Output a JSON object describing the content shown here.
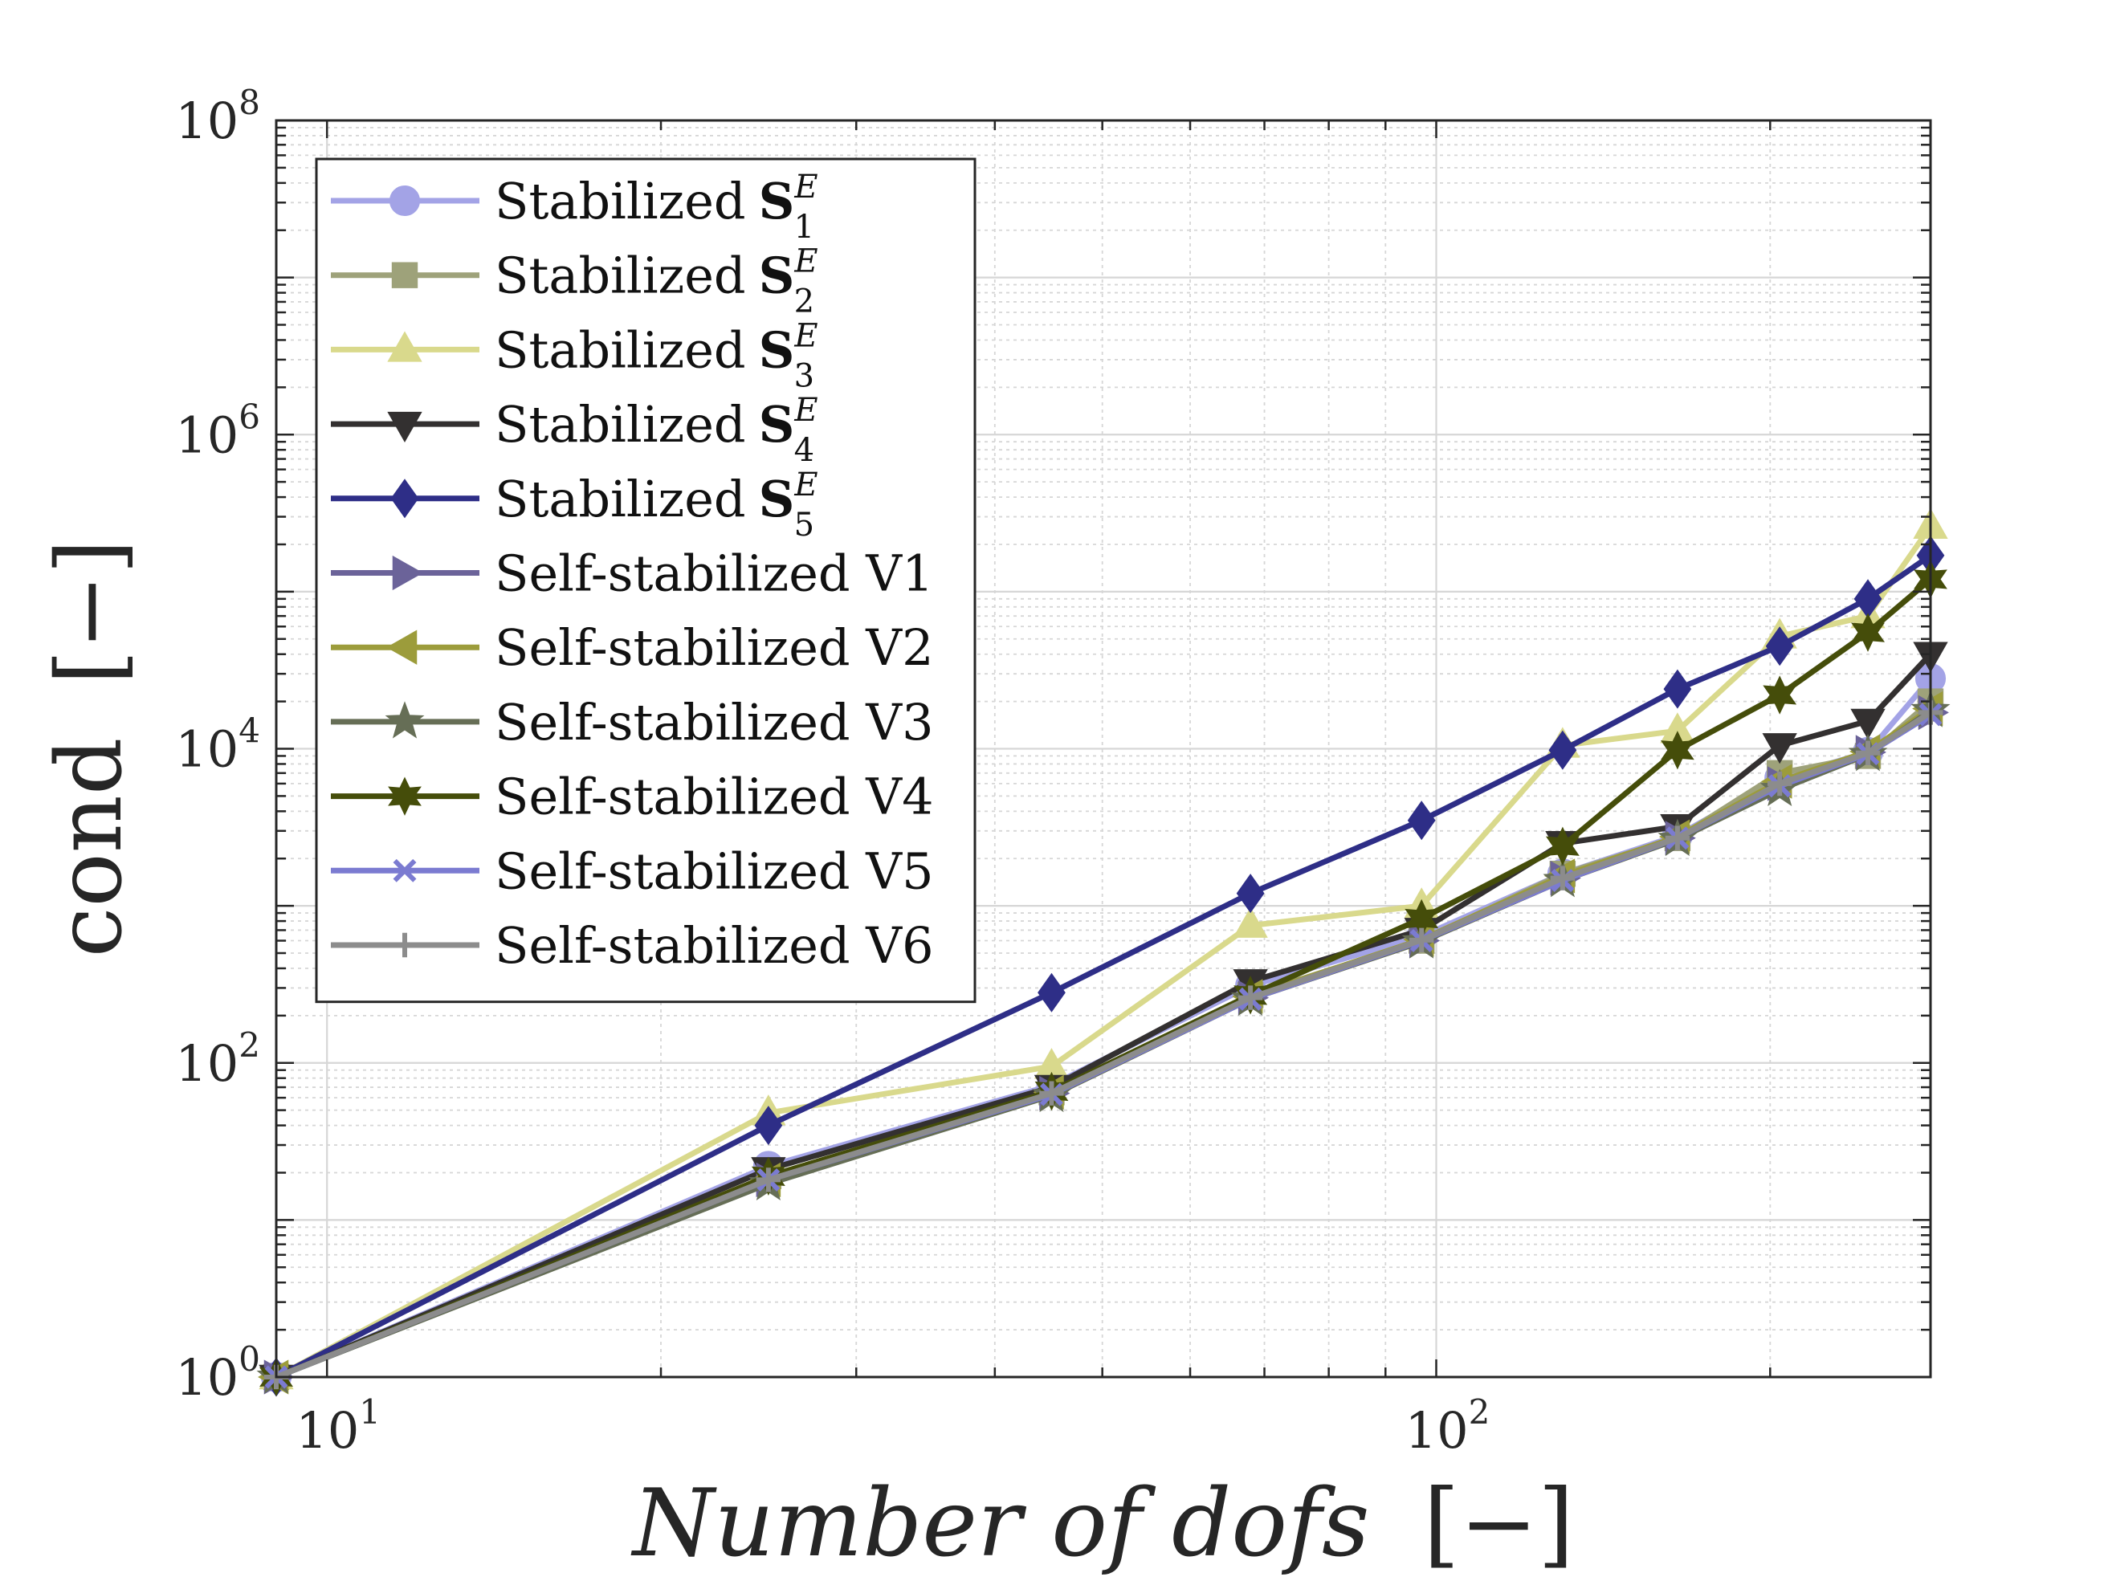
{
  "chart_data": {
    "type": "line",
    "xscale": "log",
    "yscale": "log",
    "xlim": [
      9,
      279
    ],
    "ylim": [
      1,
      100000000
    ],
    "xlabel": "Number of dofs",
    "xlabel_unit": "[−]",
    "ylabel": "cond",
    "ylabel_unit": "[−]",
    "grid": true,
    "legend_position": "top-left",
    "x_ticks": [
      {
        "value": 10,
        "base": "10",
        "exp": "1"
      },
      {
        "value": 100,
        "base": "10",
        "exp": "2"
      }
    ],
    "y_ticks": [
      {
        "value": 1,
        "base": "10",
        "exp": "0"
      },
      {
        "value": 100,
        "base": "10",
        "exp": "2"
      },
      {
        "value": 10000,
        "base": "10",
        "exp": "4"
      },
      {
        "value": 1000000,
        "base": "10",
        "exp": "6"
      },
      {
        "value": 100000000,
        "base": "10",
        "exp": "8"
      }
    ],
    "x": [
      9,
      25,
      45,
      68,
      97,
      130,
      165,
      204,
      245,
      279
    ],
    "series": [
      {
        "name": "Stabilized S_1^E",
        "label_prefix": "Stabilized",
        "label_math": "S",
        "label_sub": "1",
        "label_sup": "E",
        "color": "#a3a3e6",
        "marker": "circle",
        "values": [
          1,
          22,
          72,
          310,
          640,
          1600,
          2800,
          6500,
          9500,
          28000
        ]
      },
      {
        "name": "Stabilized S_2^E",
        "label_prefix": "Stabilized",
        "label_math": "S",
        "label_sub": "2",
        "label_sup": "E",
        "color": "#9ea27a",
        "marker": "square",
        "values": [
          1,
          19,
          65,
          270,
          600,
          1600,
          2700,
          7000,
          9000,
          20000
        ]
      },
      {
        "name": "Stabilized S_3^E",
        "label_prefix": "Stabilized",
        "label_math": "S",
        "label_sub": "3",
        "label_sup": "E",
        "color": "#d9d98c",
        "marker": "triangle-up",
        "values": [
          1,
          48,
          95,
          750,
          1000,
          10500,
          13000,
          52000,
          70000,
          260000
        ]
      },
      {
        "name": "Stabilized S_4^E",
        "label_prefix": "Stabilized",
        "label_math": "S",
        "label_sub": "4",
        "label_sup": "E",
        "color": "#333030",
        "marker": "triangle-down",
        "values": [
          1,
          21,
          70,
          330,
          700,
          2500,
          3200,
          10500,
          15000,
          40000
        ]
      },
      {
        "name": "Stabilized S_5^E",
        "label_prefix": "Stabilized",
        "label_math": "S",
        "label_sub": "5",
        "label_sup": "E",
        "color": "#2e2e87",
        "marker": "diamond",
        "values": [
          1,
          40,
          280,
          1200,
          3500,
          9800,
          24000,
          45000,
          90000,
          170000
        ]
      },
      {
        "name": "Self-stabilized V1",
        "label_prefix": "Self-stabilized V1",
        "color": "#6b6399",
        "marker": "triangle-right",
        "values": [
          1,
          18,
          64,
          260,
          600,
          1500,
          2700,
          6000,
          9500,
          17000
        ]
      },
      {
        "name": "Self-stabilized V2",
        "label_prefix": "Self-stabilized V2",
        "color": "#9c9c3b",
        "marker": "triangle-left",
        "values": [
          1,
          18,
          65,
          265,
          610,
          1550,
          2750,
          6200,
          9600,
          18000
        ]
      },
      {
        "name": "Self-stabilized V3",
        "label_prefix": "Self-stabilized V3",
        "color": "#666e56",
        "marker": "star5",
        "values": [
          1,
          17,
          62,
          255,
          590,
          1450,
          2650,
          5500,
          9200,
          17500
        ]
      },
      {
        "name": "Self-stabilized V4",
        "label_prefix": "Self-stabilized V4",
        "color": "#454d0a",
        "marker": "star6",
        "values": [
          1,
          19,
          66,
          270,
          830,
          2400,
          9800,
          22000,
          55000,
          120000
        ]
      },
      {
        "name": "Self-stabilized V5",
        "label_prefix": "Self-stabilized V5",
        "color": "#7b7bd1",
        "marker": "x",
        "values": [
          1,
          18,
          63,
          255,
          600,
          1450,
          2700,
          5800,
          9300,
          16500
        ]
      },
      {
        "name": "Self-stabilized V6",
        "label_prefix": "Self-stabilized V6",
        "color": "#8c8c8c",
        "marker": "plus",
        "values": [
          1,
          18,
          64,
          260,
          605,
          1500,
          2700,
          6000,
          9400,
          17000
        ]
      }
    ]
  }
}
